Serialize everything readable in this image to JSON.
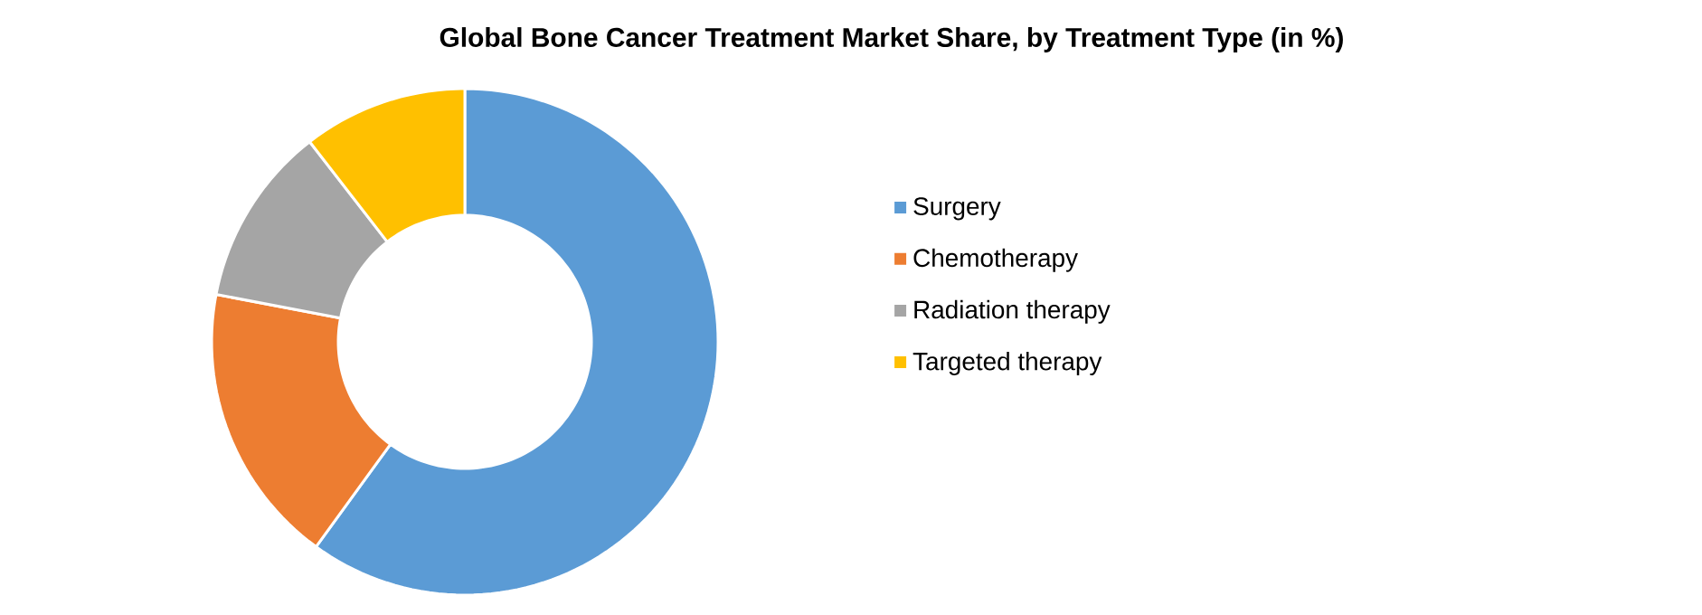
{
  "chart_data": {
    "type": "donut",
    "title": "Global Bone Cancer Treatment Market Share, by Treatment Type (in %)",
    "categories": [
      "Surgery",
      "Chemotherapy",
      "Radiation therapy",
      "Targeted therapy"
    ],
    "values": [
      60,
      18,
      11.5,
      10.5
    ],
    "colors": [
      "#5b9bd5",
      "#ed7d31",
      "#a5a5a5",
      "#ffc000"
    ],
    "legend": "right"
  }
}
